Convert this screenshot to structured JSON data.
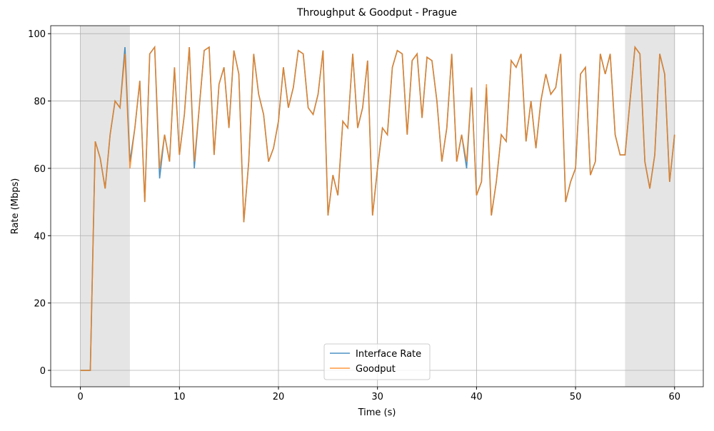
{
  "chart_data": {
    "type": "line",
    "title": "Throughput & Goodput - Prague",
    "x_label": "Time (s)",
    "y_label": "Rate (Mbps)",
    "x": [
      0,
      0.5,
      1,
      1.5,
      2,
      2.5,
      3,
      3.5,
      4,
      4.5,
      5,
      5.5,
      6,
      6.5,
      7,
      7.5,
      8,
      8.5,
      9,
      9.5,
      10,
      10.5,
      11,
      11.5,
      12,
      12.5,
      13,
      13.5,
      14,
      14.5,
      15,
      15.5,
      16,
      16.5,
      17,
      17.5,
      18,
      18.5,
      19,
      19.5,
      20,
      20.5,
      21,
      21.5,
      22,
      22.5,
      23,
      23.5,
      24,
      24.5,
      25,
      25.5,
      26,
      26.5,
      27,
      27.5,
      28,
      28.5,
      29,
      29.5,
      30,
      30.5,
      31,
      31.5,
      32,
      32.5,
      33,
      33.5,
      34,
      34.5,
      35,
      35.5,
      36,
      36.5,
      37,
      37.5,
      38,
      38.5,
      39,
      39.5,
      40,
      40.5,
      41,
      41.5,
      42,
      42.5,
      43,
      43.5,
      44,
      44.5,
      45,
      45.5,
      46,
      46.5,
      47,
      47.5,
      48,
      48.5,
      49,
      49.5,
      50,
      50.5,
      51,
      51.5,
      52,
      52.5,
      53,
      53.5,
      54,
      54.5,
      55,
      55.5,
      56,
      56.5,
      57,
      57.5,
      58,
      58.5,
      59,
      59.5,
      60
    ],
    "series": [
      {
        "name": "Interface Rate",
        "color": "#1f77b4",
        "values": [
          0,
          0,
          0,
          68,
          63,
          54,
          70,
          80,
          78,
          96,
          62,
          72,
          86,
          50,
          94,
          96,
          57,
          70,
          62,
          90,
          64,
          76,
          96,
          60,
          78,
          95,
          96,
          64,
          85,
          90,
          72,
          95,
          88,
          44,
          62,
          94,
          82,
          76,
          62,
          66,
          74,
          90,
          78,
          84,
          95,
          94,
          78,
          76,
          82,
          95,
          46,
          58,
          52,
          74,
          72,
          94,
          72,
          78,
          92,
          46,
          60,
          72,
          70,
          90,
          95,
          94,
          70,
          92,
          94,
          75,
          93,
          92,
          80,
          62,
          72,
          94,
          62,
          70,
          60,
          84,
          52,
          56,
          84,
          46,
          56,
          70,
          68,
          92,
          90,
          94,
          68,
          80,
          66,
          80,
          88,
          82,
          84,
          94,
          50,
          56,
          60,
          88,
          90,
          58,
          62,
          94,
          88,
          94,
          70,
          64,
          64,
          80,
          96,
          94,
          62,
          54,
          64,
          94,
          88,
          56,
          70
        ]
      },
      {
        "name": "Goodput",
        "color": "#ff7f0e",
        "values": [
          0,
          0,
          0,
          68,
          63,
          54,
          70,
          80,
          78,
          94,
          60,
          72,
          86,
          50,
          94,
          96,
          60,
          70,
          62,
          90,
          64,
          76,
          96,
          62,
          78,
          95,
          96,
          64,
          85,
          90,
          72,
          95,
          88,
          44,
          62,
          94,
          82,
          76,
          62,
          66,
          74,
          90,
          78,
          84,
          95,
          94,
          78,
          76,
          82,
          95,
          46,
          58,
          52,
          74,
          72,
          94,
          72,
          78,
          92,
          46,
          60,
          72,
          70,
          90,
          95,
          94,
          70,
          92,
          94,
          75,
          93,
          92,
          80,
          62,
          72,
          94,
          62,
          70,
          62,
          84,
          52,
          56,
          85,
          46,
          56,
          70,
          68,
          92,
          90,
          94,
          68,
          80,
          66,
          80,
          88,
          82,
          84,
          94,
          50,
          56,
          60,
          88,
          90,
          58,
          62,
          94,
          88,
          94,
          70,
          64,
          64,
          80,
          96,
          94,
          62,
          54,
          64,
          94,
          88,
          56,
          70
        ]
      }
    ],
    "shaded_regions": [
      [
        0,
        5
      ],
      [
        55,
        60
      ]
    ],
    "xlim": [
      -3,
      62.9
    ],
    "ylim": [
      -4.87,
      102.37
    ],
    "xticks": [
      0,
      10,
      20,
      30,
      40,
      50,
      60
    ],
    "yticks": [
      0,
      20,
      40,
      60,
      80,
      100
    ],
    "grid": true,
    "legend": "lower center"
  }
}
